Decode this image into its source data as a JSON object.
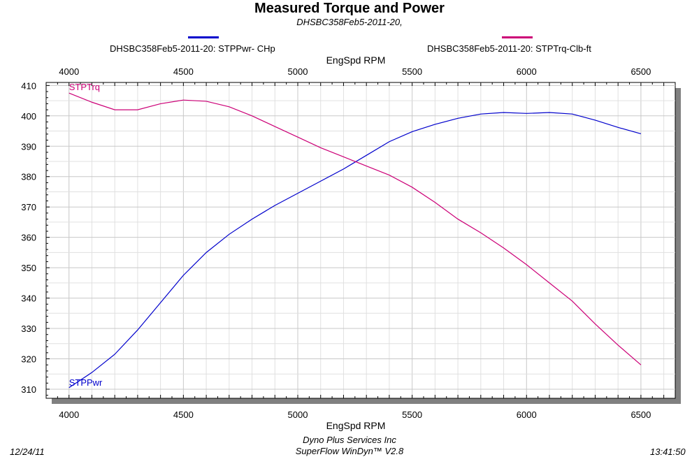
{
  "header": {
    "title": "Measured Torque and Power",
    "subtitle": "DHSBC358Feb5-2011-20,"
  },
  "legend": [
    {
      "label": "DHSBC358Feb5-2011-20: STPPwr- CHp",
      "color": "#0000cc"
    },
    {
      "label": "DHSBC358Feb5-2011-20: STPTrq-Clb-ft",
      "color": "#cc0077"
    }
  ],
  "footer": {
    "date": "12/24/11",
    "company": "Dyno Plus Services Inc",
    "software": "SuperFlow WinDyn™ V2.8",
    "time": "13:41:50"
  },
  "chart_data": {
    "type": "line",
    "title": "Measured Torque and Power",
    "subtitle": "DHSBC358Feb5-2011-20,",
    "xlabel": "EngSpd  RPM",
    "xlabel_top": "EngSpd  RPM",
    "xlim": [
      3900,
      6650
    ],
    "ylim": [
      307,
      411
    ],
    "x_ticks": [
      4000,
      4500,
      5000,
      5500,
      6000,
      6500
    ],
    "y_ticks": [
      310,
      320,
      330,
      340,
      350,
      360,
      370,
      380,
      390,
      400,
      410
    ],
    "grid": true,
    "legend_position": "top",
    "series": [
      {
        "name": "DHSBC358Feb5-2011-20: STPPwr- CHp",
        "label": "STPPwr",
        "color": "#0000cc",
        "x": [
          4000,
          4100,
          4200,
          4300,
          4400,
          4500,
          4600,
          4700,
          4800,
          4900,
          5000,
          5100,
          5200,
          5300,
          5400,
          5500,
          5600,
          5700,
          5800,
          5900,
          6000,
          6100,
          6200,
          6300,
          6400,
          6500
        ],
        "y": [
          310.5,
          315.5,
          321.5,
          329.5,
          338.5,
          347.5,
          355,
          361,
          366,
          370.5,
          374.5,
          378.5,
          382.5,
          387,
          391.5,
          394.8,
          397.2,
          399.2,
          400.6,
          401.1,
          400.8,
          401.1,
          400.6,
          398.6,
          396.2,
          394.1
        ]
      },
      {
        "name": "DHSBC358Feb5-2011-20: STPTrq-Clb-ft",
        "label": "STPTrq",
        "color": "#cc0077",
        "x": [
          4000,
          4100,
          4200,
          4300,
          4400,
          4500,
          4600,
          4700,
          4800,
          4900,
          5000,
          5100,
          5200,
          5300,
          5400,
          5500,
          5600,
          5700,
          5800,
          5900,
          6000,
          6100,
          6200,
          6300,
          6400,
          6500
        ],
        "y": [
          407.5,
          404.5,
          402,
          402,
          404,
          405.2,
          404.8,
          403,
          400,
          396.5,
          393,
          389.5,
          386.5,
          383.5,
          380.5,
          376.5,
          371.5,
          366,
          361.5,
          356.5,
          351,
          345,
          339,
          331.5,
          324.5,
          318
        ]
      }
    ]
  }
}
